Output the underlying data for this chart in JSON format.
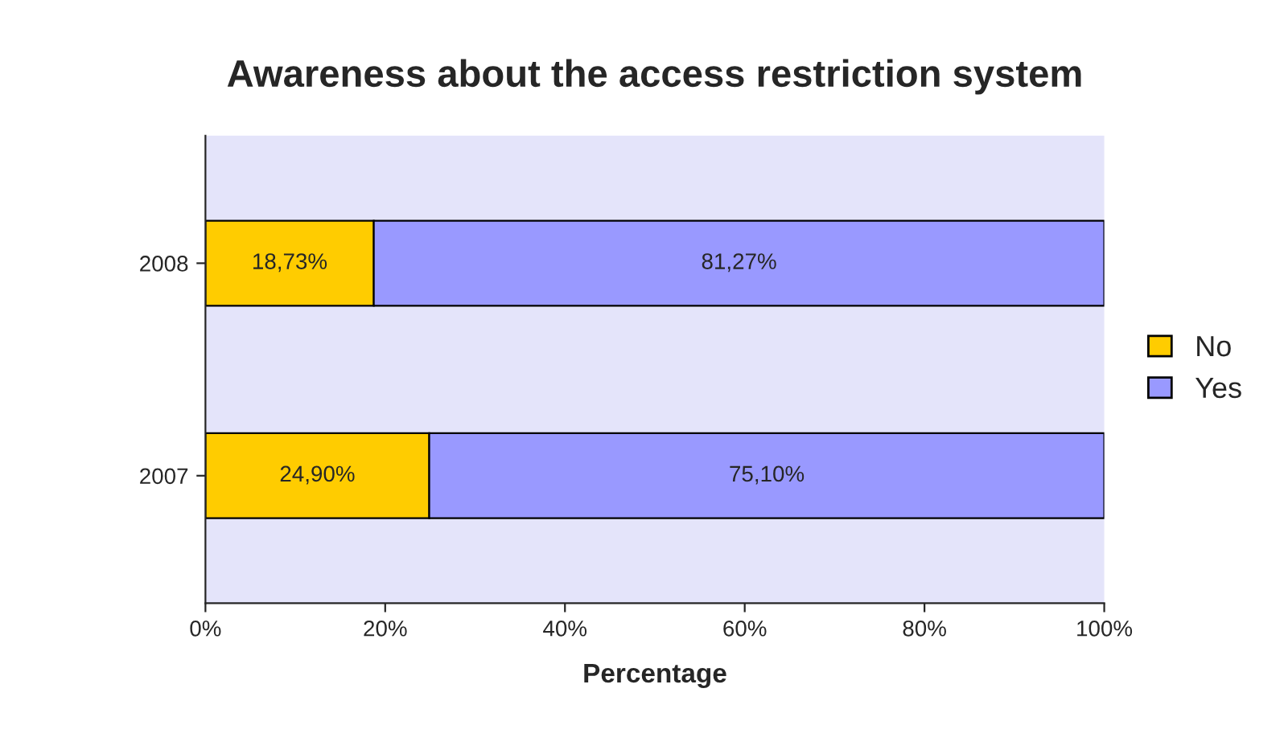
{
  "chart_data": {
    "type": "bar",
    "title": "Awareness about the access restriction system",
    "xlabel": "Percentage",
    "orientation": "horizontal",
    "stacked": true,
    "categories": [
      "2008",
      "2007"
    ],
    "series": [
      {
        "name": "No",
        "color": "#ffcc00",
        "values": [
          18.73,
          24.9
        ],
        "value_labels": [
          "18,73%",
          "24,90%"
        ]
      },
      {
        "name": "Yes",
        "color": "#9999ff",
        "values": [
          81.27,
          75.1
        ],
        "value_labels": [
          "81,27%",
          "75,10%"
        ]
      }
    ],
    "xlim": [
      0,
      100
    ],
    "xticks": [
      {
        "value": 0,
        "label": "0%"
      },
      {
        "value": 20,
        "label": "20%"
      },
      {
        "value": 40,
        "label": "40%"
      },
      {
        "value": 60,
        "label": "60%"
      },
      {
        "value": 80,
        "label": "80%"
      },
      {
        "value": 100,
        "label": "100%"
      }
    ],
    "grid": false,
    "legend": "right"
  }
}
